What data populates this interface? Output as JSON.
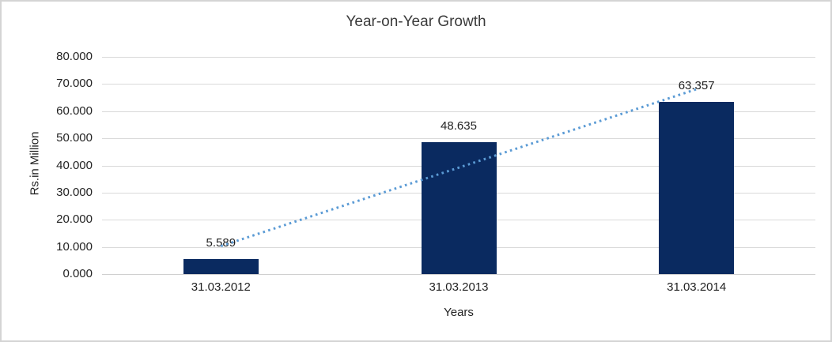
{
  "chart_data": {
    "type": "bar",
    "title": "Year-on-Year Growth",
    "categories": [
      "31.03.2012",
      "31.03.2013",
      "31.03.2014"
    ],
    "values": [
      5.589,
      48.635,
      63.357
    ],
    "data_labels": [
      "5.589",
      "48.635",
      "63.357"
    ],
    "xlabel": "Years",
    "ylabel": "Rs.in Million",
    "ylim": [
      0,
      80
    ],
    "ytick_step": 10,
    "ytick_labels": [
      "0.000",
      "10.000",
      "20.000",
      "30.000",
      "40.000",
      "50.000",
      "60.000",
      "70.000",
      "80.000"
    ],
    "grid": true,
    "legend": "none",
    "trendline": {
      "style": "dotted",
      "start_value": 10.3,
      "end_value": 68.1
    },
    "colors": {
      "bar": "#0a2a60",
      "trendline": "#5b9bd5",
      "gridline": "#d9d9d9",
      "axis_line": "#d0d0d0",
      "text": "#232323",
      "title_text": "#3b3b3b",
      "chart_border": "#d4d4d4",
      "background": "#ffffff"
    }
  }
}
